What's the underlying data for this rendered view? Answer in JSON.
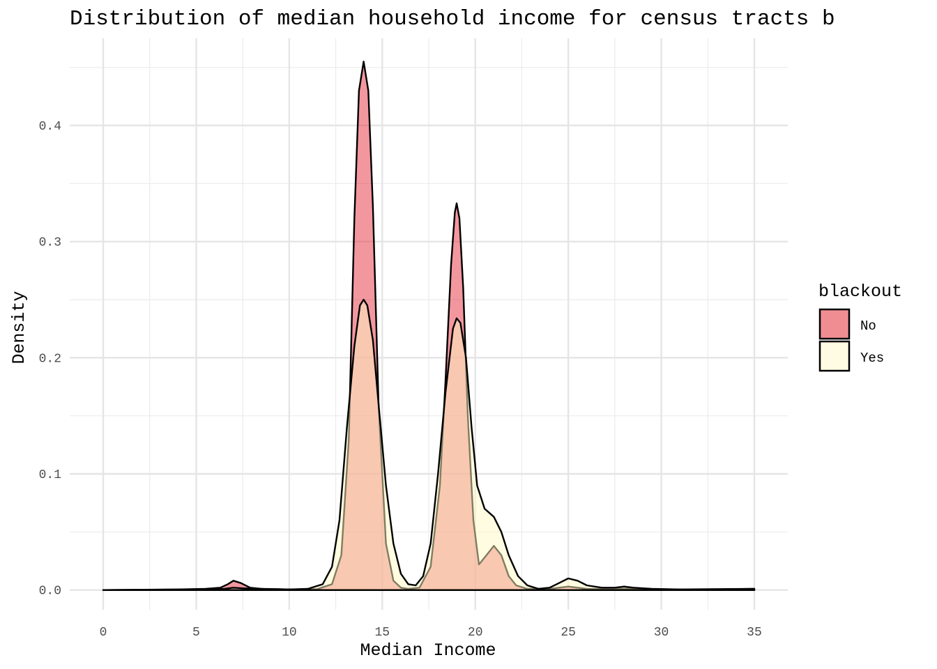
{
  "chart_data": {
    "type": "area",
    "title": "Distribution of median household income for census tracts b",
    "xlabel": "Median Income",
    "ylabel": "Density",
    "xlim": [
      -1.8,
      36.8
    ],
    "ylim": [
      -0.017,
      0.475
    ],
    "x_ticks": [
      0,
      5,
      10,
      15,
      20,
      25,
      30,
      35
    ],
    "x_tick_labels": [
      "0",
      "5",
      "10",
      "15",
      "20",
      "25",
      "30",
      "35"
    ],
    "y_ticks": [
      0,
      0.1,
      0.2,
      0.3,
      0.4
    ],
    "y_tick_labels": [
      "0.0",
      "0.1",
      "0.2",
      "0.3",
      "0.4"
    ],
    "grid": true,
    "legend": {
      "title": "blackout",
      "position": "right",
      "entries": [
        {
          "label": "No",
          "color": "#F08D93"
        },
        {
          "label": "Yes",
          "color": "#FFFCE3"
        }
      ]
    },
    "series": [
      {
        "name": "No",
        "color": "#E8303F",
        "opacity": 0.5,
        "x": [
          0,
          4,
          5.5,
          6.3,
          6.7,
          7,
          7.4,
          7.9,
          8.5,
          10,
          11.5,
          12.3,
          12.8,
          13.2,
          13.5,
          13.75,
          14,
          14.25,
          14.5,
          14.8,
          15.2,
          15.6,
          16,
          16.4,
          17,
          17.6,
          18.1,
          18.4,
          18.7,
          18.9,
          19,
          19.15,
          19.35,
          19.6,
          19.9,
          20.2,
          20.6,
          21,
          21.4,
          21.8,
          22.2,
          22.8,
          24,
          24.5,
          25,
          25.5,
          26,
          27,
          28,
          29,
          30,
          32,
          35
        ],
        "y": [
          0,
          0.0005,
          0.001,
          0.002,
          0.005,
          0.008,
          0.006,
          0.002,
          0.001,
          0.0005,
          0.0008,
          0.005,
          0.03,
          0.13,
          0.32,
          0.43,
          0.455,
          0.43,
          0.33,
          0.16,
          0.04,
          0.008,
          0.002,
          0.001,
          0.002,
          0.02,
          0.09,
          0.18,
          0.28,
          0.325,
          0.333,
          0.32,
          0.26,
          0.15,
          0.06,
          0.022,
          0.03,
          0.038,
          0.03,
          0.012,
          0.004,
          0.001,
          0.001,
          0.002,
          0.003,
          0.002,
          0.001,
          0.0008,
          0.0012,
          0.0008,
          0.0005,
          0.0003,
          0.001
        ]
      },
      {
        "name": "Yes",
        "color": "#FFF9C4",
        "opacity": 0.5,
        "x": [
          0,
          5,
          6.5,
          7,
          7.5,
          8.5,
          10,
          11,
          11.8,
          12.3,
          12.7,
          13.1,
          13.5,
          13.8,
          14,
          14.2,
          14.5,
          14.8,
          15.2,
          15.6,
          16,
          16.4,
          16.8,
          17.2,
          17.6,
          18,
          18.4,
          18.8,
          19,
          19.2,
          19.5,
          19.8,
          20.1,
          20.5,
          21,
          21.4,
          21.8,
          22.3,
          22.8,
          23.4,
          24,
          24.5,
          25,
          25.5,
          26,
          26.8,
          27.5,
          28,
          28.5,
          29.5,
          31,
          35
        ],
        "y": [
          0,
          0.0005,
          0.001,
          0.002,
          0.0015,
          0.001,
          0.0005,
          0.001,
          0.005,
          0.02,
          0.06,
          0.14,
          0.21,
          0.245,
          0.25,
          0.245,
          0.215,
          0.16,
          0.09,
          0.04,
          0.014,
          0.005,
          0.004,
          0.012,
          0.04,
          0.1,
          0.17,
          0.225,
          0.234,
          0.23,
          0.2,
          0.14,
          0.09,
          0.07,
          0.063,
          0.05,
          0.03,
          0.012,
          0.004,
          0.001,
          0.002,
          0.006,
          0.01,
          0.008,
          0.004,
          0.002,
          0.002,
          0.003,
          0.002,
          0.001,
          0.0005,
          0.001
        ]
      }
    ]
  }
}
